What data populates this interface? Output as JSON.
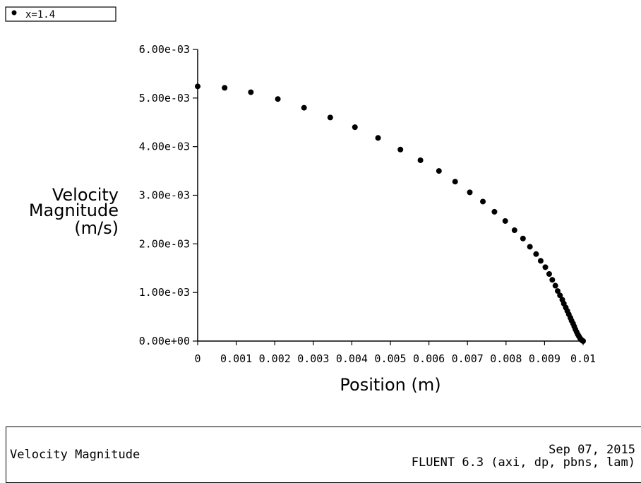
{
  "chart_data": {
    "type": "scatter",
    "xlabel": "Position (m)",
    "ylabel": [
      "Velocity",
      "Magnitude",
      "(m/s)"
    ],
    "xlim": [
      0,
      0.01
    ],
    "ylim": [
      0,
      0.006
    ],
    "x_tick_labels": [
      "0",
      "0.001",
      "0.002",
      "0.003",
      "0.004",
      "0.005",
      "0.006",
      "0.007",
      "0.008",
      "0.009",
      "0.01"
    ],
    "y_tick_labels": [
      "0.00e+00",
      "1.00e-03",
      "2.00e-03",
      "3.00e-03",
      "4.00e-03",
      "5.00e-03",
      "6.00e-03"
    ],
    "legend_position": "top-left",
    "grid": false,
    "series": [
      {
        "name": "x=1.4",
        "color": "#000000",
        "x": [
          0,
          0.0007,
          0.00138,
          0.00208,
          0.00276,
          0.00344,
          0.00408,
          0.00468,
          0.00526,
          0.00578,
          0.00626,
          0.00668,
          0.00706,
          0.0074,
          0.0077,
          0.00798,
          0.00822,
          0.00844,
          0.00862,
          0.00878,
          0.0089,
          0.00902,
          0.00912,
          0.0092,
          0.00928,
          0.00934,
          0.0094,
          0.00946,
          0.0095,
          0.00955,
          0.00959,
          0.00963,
          0.00967,
          0.0097,
          0.00974,
          0.00977,
          0.0098,
          0.00983,
          0.00986,
          0.00989,
          0.00992,
          0.00995,
          0.00998,
          0.01
        ],
        "y": [
          0.00524,
          0.00521,
          0.00512,
          0.00498,
          0.0048,
          0.0046,
          0.0044,
          0.00418,
          0.00394,
          0.00372,
          0.0035,
          0.00328,
          0.00306,
          0.00287,
          0.00266,
          0.00247,
          0.00228,
          0.00211,
          0.00194,
          0.00179,
          0.00165,
          0.00152,
          0.00138,
          0.00126,
          0.00114,
          0.00103,
          0.00094,
          0.00085,
          0.00077,
          0.00069,
          0.00062,
          0.00055,
          0.00048,
          0.00042,
          0.00036,
          0.0003,
          0.00024,
          0.00019,
          0.00014,
          0.0001,
          6e-05,
          3e-05,
          1e-05,
          0.0
        ]
      }
    ]
  },
  "footer": {
    "title": "Velocity Magnitude",
    "date": "Sep 07, 2015",
    "software": "FLUENT 6.3 (axi, dp, pbns, lam)"
  }
}
